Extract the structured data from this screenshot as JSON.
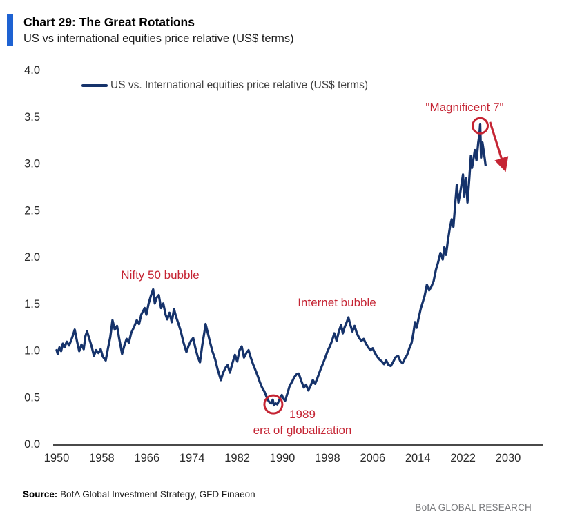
{
  "header": {
    "title": "Chart 29: The Great Rotations",
    "subtitle": "US vs international equities price relative (US$ terms)"
  },
  "legend": {
    "label": "US vs. International equities price relative (US$ terms)"
  },
  "annotations": {
    "nifty": "Nifty 50 bubble",
    "internet": "Internet bubble",
    "mag7": "\"Magnificent 7\"",
    "year_1989": "1989",
    "era": "era of globalization"
  },
  "footer": {
    "source_label": "Source:",
    "source_text": " BofA Global Investment Strategy, GFD Finaeon",
    "brand": "BofA GLOBAL RESEARCH"
  },
  "chart_data": {
    "type": "line",
    "title": "Chart 29: The Great Rotations",
    "xlabel": "",
    "ylabel": "",
    "xlim": [
      1950,
      2036
    ],
    "ylim": [
      0.0,
      4.0
    ],
    "grid": false,
    "legend_position": "top-left",
    "x_ticks": [
      1950,
      1958,
      1966,
      1974,
      1982,
      1990,
      1998,
      2006,
      2014,
      2022,
      2030
    ],
    "y_ticks": [
      "0.0",
      "0.5",
      "1.0",
      "1.5",
      "2.0",
      "2.5",
      "3.0",
      "3.5",
      "4.0"
    ],
    "colors": {
      "line": "#16336b",
      "annotation": "#c52433",
      "axis": "#4a4a4a"
    },
    "series": [
      {
        "name": "US vs. International equities price relative (US$ terms)",
        "points": [
          [
            1950.0,
            1.0
          ],
          [
            1950.2,
            0.96
          ],
          [
            1950.5,
            1.03
          ],
          [
            1950.8,
            0.99
          ],
          [
            1951.1,
            1.07
          ],
          [
            1951.4,
            1.03
          ],
          [
            1951.8,
            1.09
          ],
          [
            1952.2,
            1.05
          ],
          [
            1952.6,
            1.11
          ],
          [
            1952.9,
            1.16
          ],
          [
            1953.2,
            1.22
          ],
          [
            1953.6,
            1.1
          ],
          [
            1954.0,
            0.99
          ],
          [
            1954.4,
            1.06
          ],
          [
            1954.8,
            1.01
          ],
          [
            1955.1,
            1.15
          ],
          [
            1955.4,
            1.2
          ],
          [
            1955.8,
            1.12
          ],
          [
            1956.2,
            1.04
          ],
          [
            1956.6,
            0.94
          ],
          [
            1957.0,
            1.0
          ],
          [
            1957.4,
            0.97
          ],
          [
            1957.8,
            1.01
          ],
          [
            1958.2,
            0.93
          ],
          [
            1958.7,
            0.89
          ],
          [
            1959.1,
            1.02
          ],
          [
            1959.5,
            1.14
          ],
          [
            1959.9,
            1.32
          ],
          [
            1960.3,
            1.22
          ],
          [
            1960.7,
            1.26
          ],
          [
            1961.1,
            1.12
          ],
          [
            1961.6,
            0.96
          ],
          [
            1962.0,
            1.05
          ],
          [
            1962.4,
            1.12
          ],
          [
            1962.8,
            1.08
          ],
          [
            1963.2,
            1.18
          ],
          [
            1963.8,
            1.26
          ],
          [
            1964.2,
            1.32
          ],
          [
            1964.6,
            1.28
          ],
          [
            1965.0,
            1.38
          ],
          [
            1965.6,
            1.45
          ],
          [
            1965.9,
            1.38
          ],
          [
            1966.3,
            1.5
          ],
          [
            1966.7,
            1.58
          ],
          [
            1967.1,
            1.65
          ],
          [
            1967.4,
            1.5
          ],
          [
            1967.7,
            1.56
          ],
          [
            1968.1,
            1.59
          ],
          [
            1968.5,
            1.45
          ],
          [
            1968.9,
            1.5
          ],
          [
            1969.3,
            1.38
          ],
          [
            1969.6,
            1.33
          ],
          [
            1970.0,
            1.4
          ],
          [
            1970.4,
            1.3
          ],
          [
            1970.8,
            1.44
          ],
          [
            1971.2,
            1.35
          ],
          [
            1971.6,
            1.28
          ],
          [
            1972.0,
            1.2
          ],
          [
            1972.5,
            1.08
          ],
          [
            1973.0,
            0.98
          ],
          [
            1973.4,
            1.05
          ],
          [
            1973.8,
            1.1
          ],
          [
            1974.2,
            1.13
          ],
          [
            1974.6,
            1.02
          ],
          [
            1975.0,
            0.93
          ],
          [
            1975.4,
            0.87
          ],
          [
            1975.8,
            1.05
          ],
          [
            1976.2,
            1.2
          ],
          [
            1976.4,
            1.28
          ],
          [
            1976.8,
            1.18
          ],
          [
            1977.2,
            1.08
          ],
          [
            1977.6,
            0.99
          ],
          [
            1978.1,
            0.9
          ],
          [
            1978.5,
            0.8
          ],
          [
            1979.1,
            0.68
          ],
          [
            1979.5,
            0.76
          ],
          [
            1980.0,
            0.82
          ],
          [
            1980.3,
            0.84
          ],
          [
            1980.7,
            0.76
          ],
          [
            1981.1,
            0.85
          ],
          [
            1981.6,
            0.95
          ],
          [
            1982.0,
            0.88
          ],
          [
            1982.4,
            1.0
          ],
          [
            1982.8,
            1.04
          ],
          [
            1983.2,
            0.92
          ],
          [
            1983.6,
            0.97
          ],
          [
            1984.0,
            1.0
          ],
          [
            1984.4,
            0.92
          ],
          [
            1984.8,
            0.85
          ],
          [
            1985.2,
            0.79
          ],
          [
            1985.6,
            0.73
          ],
          [
            1986.0,
            0.66
          ],
          [
            1986.4,
            0.6
          ],
          [
            1986.8,
            0.56
          ],
          [
            1987.2,
            0.5
          ],
          [
            1987.6,
            0.45
          ],
          [
            1988.0,
            0.43
          ],
          [
            1988.3,
            0.47
          ],
          [
            1988.5,
            0.41
          ],
          [
            1988.8,
            0.43
          ],
          [
            1989.1,
            0.42
          ],
          [
            1989.4,
            0.46
          ],
          [
            1989.7,
            0.5
          ],
          [
            1989.9,
            0.52
          ],
          [
            1990.2,
            0.48
          ],
          [
            1990.5,
            0.46
          ],
          [
            1990.9,
            0.54
          ],
          [
            1991.3,
            0.62
          ],
          [
            1991.7,
            0.66
          ],
          [
            1992.1,
            0.71
          ],
          [
            1992.5,
            0.74
          ],
          [
            1992.9,
            0.75
          ],
          [
            1993.3,
            0.68
          ],
          [
            1993.8,
            0.6
          ],
          [
            1994.2,
            0.63
          ],
          [
            1994.6,
            0.57
          ],
          [
            1995.0,
            0.62
          ],
          [
            1995.4,
            0.68
          ],
          [
            1995.8,
            0.64
          ],
          [
            1996.2,
            0.7
          ],
          [
            1996.8,
            0.8
          ],
          [
            1997.2,
            0.86
          ],
          [
            1997.6,
            0.92
          ],
          [
            1998.0,
            0.99
          ],
          [
            1998.4,
            1.04
          ],
          [
            1998.8,
            1.1
          ],
          [
            1999.2,
            1.18
          ],
          [
            1999.6,
            1.1
          ],
          [
            2000.0,
            1.2
          ],
          [
            2000.4,
            1.27
          ],
          [
            2000.7,
            1.18
          ],
          [
            2001.0,
            1.24
          ],
          [
            2001.4,
            1.3
          ],
          [
            2001.7,
            1.35
          ],
          [
            2002.0,
            1.28
          ],
          [
            2002.4,
            1.2
          ],
          [
            2002.8,
            1.26
          ],
          [
            2003.2,
            1.18
          ],
          [
            2003.6,
            1.13
          ],
          [
            2004.0,
            1.1
          ],
          [
            2004.4,
            1.12
          ],
          [
            2004.8,
            1.07
          ],
          [
            2005.2,
            1.03
          ],
          [
            2005.6,
            1.0
          ],
          [
            2006.0,
            1.02
          ],
          [
            2006.4,
            0.97
          ],
          [
            2006.8,
            0.93
          ],
          [
            2007.2,
            0.9
          ],
          [
            2007.6,
            0.88
          ],
          [
            2008.0,
            0.85
          ],
          [
            2008.4,
            0.89
          ],
          [
            2008.8,
            0.84
          ],
          [
            2009.2,
            0.83
          ],
          [
            2009.6,
            0.87
          ],
          [
            2010.0,
            0.92
          ],
          [
            2010.5,
            0.94
          ],
          [
            2010.9,
            0.88
          ],
          [
            2011.3,
            0.86
          ],
          [
            2011.7,
            0.91
          ],
          [
            2012.1,
            0.95
          ],
          [
            2012.5,
            1.02
          ],
          [
            2012.9,
            1.08
          ],
          [
            2013.2,
            1.18
          ],
          [
            2013.5,
            1.3
          ],
          [
            2013.8,
            1.24
          ],
          [
            2014.1,
            1.33
          ],
          [
            2014.5,
            1.44
          ],
          [
            2014.9,
            1.52
          ],
          [
            2015.2,
            1.58
          ],
          [
            2015.6,
            1.7
          ],
          [
            2016.0,
            1.64
          ],
          [
            2016.4,
            1.68
          ],
          [
            2016.8,
            1.74
          ],
          [
            2017.2,
            1.86
          ],
          [
            2017.6,
            1.94
          ],
          [
            2018.0,
            2.04
          ],
          [
            2018.4,
            1.97
          ],
          [
            2018.7,
            2.1
          ],
          [
            2019.0,
            2.02
          ],
          [
            2019.3,
            2.16
          ],
          [
            2019.7,
            2.32
          ],
          [
            2020.0,
            2.4
          ],
          [
            2020.3,
            2.32
          ],
          [
            2020.6,
            2.55
          ],
          [
            2020.9,
            2.77
          ],
          [
            2021.2,
            2.58
          ],
          [
            2021.5,
            2.68
          ],
          [
            2021.8,
            2.8
          ],
          [
            2022.0,
            2.88
          ],
          [
            2022.2,
            2.64
          ],
          [
            2022.5,
            2.84
          ],
          [
            2022.8,
            2.58
          ],
          [
            2023.1,
            2.82
          ],
          [
            2023.4,
            3.08
          ],
          [
            2023.6,
            2.95
          ],
          [
            2023.9,
            3.06
          ],
          [
            2024.1,
            3.14
          ],
          [
            2024.4,
            3.03
          ],
          [
            2024.7,
            3.22
          ],
          [
            2024.9,
            3.3
          ],
          [
            2025.05,
            3.42
          ],
          [
            2025.2,
            3.06
          ],
          [
            2025.45,
            3.22
          ],
          [
            2025.7,
            3.12
          ],
          [
            2026.0,
            2.98
          ]
        ]
      }
    ],
    "markers": {
      "circles": [
        {
          "label": "1989 low",
          "year": 1988.4,
          "value": 0.42,
          "r": 13
        },
        {
          "label": "Magnificent 7 peak",
          "year": 2025.05,
          "value": 3.4,
          "r": 11
        }
      ],
      "arrow": {
        "from": [
          2026.8,
          3.44
        ],
        "to": [
          2029.4,
          2.94
        ]
      }
    }
  }
}
